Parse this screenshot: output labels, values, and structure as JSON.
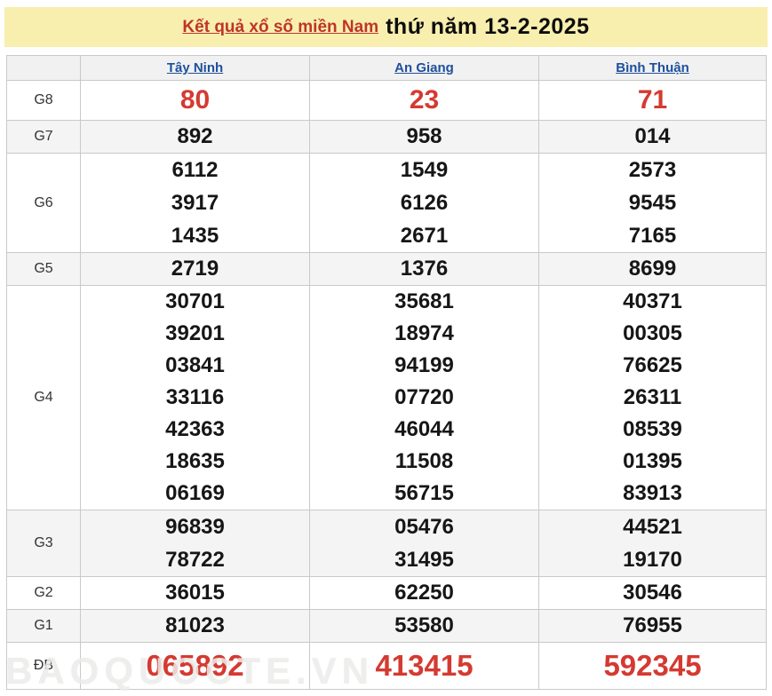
{
  "banner": {
    "title_link": "Kết quả xổ số miền Nam",
    "title_rest": "thứ năm 13-2-2025"
  },
  "table": {
    "columns": [
      "Tây Ninh",
      "An Giang",
      "Bình Thuận"
    ],
    "rows": [
      {
        "label": "G8",
        "highlight": true,
        "values": [
          [
            "80"
          ],
          [
            "23"
          ],
          [
            "71"
          ]
        ]
      },
      {
        "label": "G7",
        "highlight": false,
        "values": [
          [
            "892"
          ],
          [
            "958"
          ],
          [
            "014"
          ]
        ]
      },
      {
        "label": "G6",
        "highlight": false,
        "values": [
          [
            "6112",
            "3917",
            "1435"
          ],
          [
            "1549",
            "6126",
            "2671"
          ],
          [
            "2573",
            "9545",
            "7165"
          ]
        ]
      },
      {
        "label": "G5",
        "highlight": false,
        "values": [
          [
            "2719"
          ],
          [
            "1376"
          ],
          [
            "8699"
          ]
        ]
      },
      {
        "label": "G4",
        "highlight": false,
        "values": [
          [
            "30701",
            "39201",
            "03841",
            "33116",
            "42363",
            "18635",
            "06169"
          ],
          [
            "35681",
            "18974",
            "94199",
            "07720",
            "46044",
            "11508",
            "56715"
          ],
          [
            "40371",
            "00305",
            "76625",
            "26311",
            "08539",
            "01395",
            "83913"
          ]
        ]
      },
      {
        "label": "G3",
        "highlight": false,
        "values": [
          [
            "96839",
            "78722"
          ],
          [
            "05476",
            "31495"
          ],
          [
            "44521",
            "19170"
          ]
        ]
      },
      {
        "label": "G2",
        "highlight": false,
        "values": [
          [
            "36015"
          ],
          [
            "62250"
          ],
          [
            "30546"
          ]
        ]
      },
      {
        "label": "G1",
        "highlight": false,
        "values": [
          [
            "81023"
          ],
          [
            "53580"
          ],
          [
            "76955"
          ]
        ]
      },
      {
        "label": "ĐB",
        "highlight": true,
        "values": [
          [
            "065892"
          ],
          [
            "413415"
          ],
          [
            "592345"
          ]
        ]
      }
    ]
  },
  "watermark": "BAOQUOCTE.VN",
  "colors": {
    "accent_red": "#d43a31",
    "title_red": "#bf3429",
    "link_blue": "#1e4f9c",
    "banner_yellow": "#f8efae",
    "row_shade": "#f4f4f4",
    "border": "#c9c9c9"
  }
}
